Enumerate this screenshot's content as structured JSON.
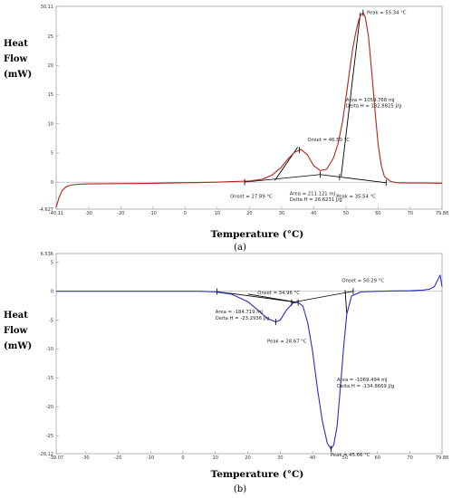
{
  "chart_data": [
    {
      "panel": "(a)",
      "type": "line",
      "xlabel": "Temperature (°C)",
      "ylabel_lines": [
        "Heat",
        "Flow",
        "(mW)"
      ],
      "xlim": [
        -40.11,
        79.88
      ],
      "ylim": [
        -4.627,
        30.11
      ],
      "x_ticks": [
        -40.11,
        -30,
        -20,
        -10,
        0,
        10,
        20,
        30,
        40,
        50,
        60,
        70,
        79.88
      ],
      "x_tick_labels": [
        "-40.11",
        "-30",
        "-20",
        "-10",
        "0",
        "10",
        "20",
        "30",
        "40",
        "50",
        "60",
        "70",
        "79.88"
      ],
      "y_ticks": [
        -4.627,
        0,
        5,
        10,
        15,
        20,
        25,
        30.11
      ],
      "y_tick_labels": [
        "-4.627",
        "0",
        "5",
        "10",
        "15",
        "20",
        "25",
        "30.11"
      ],
      "series": [
        {
          "color": "#b5231c",
          "x": [
            -40.11,
            -39.2,
            -38.2,
            -37,
            -35.5,
            -33,
            -30,
            -20,
            -10,
            0,
            10,
            20,
            24,
            27,
            30,
            32,
            34,
            36,
            38,
            40,
            42,
            44,
            46,
            47.5,
            49,
            50.5,
            52,
            53,
            54,
            54.6,
            55.34,
            56,
            57,
            58,
            59,
            60,
            61,
            62,
            64,
            66,
            70,
            75,
            79.88
          ],
          "y": [
            -4.3,
            -2.6,
            -1.4,
            -0.8,
            -0.5,
            -0.35,
            -0.3,
            -0.25,
            -0.2,
            -0.1,
            0.0,
            0.2,
            0.5,
            1.2,
            2.6,
            4.0,
            5.1,
            5.6,
            4.7,
            2.8,
            2.0,
            2.2,
            4.0,
            6.5,
            10.5,
            16.5,
            22.5,
            25.5,
            27.8,
            28.6,
            29.0,
            28.3,
            25.0,
            19.0,
            12.5,
            6.5,
            2.8,
            0.9,
            0.1,
            -0.1,
            -0.15,
            -0.15,
            -0.2
          ]
        }
      ],
      "baselines": [
        {
          "x": [
            18.5,
            42
          ],
          "y": [
            0.0,
            1.3
          ]
        },
        {
          "x": [
            42,
            62.5
          ],
          "y": [
            1.3,
            -0.1
          ]
        }
      ],
      "markers": [
        {
          "x": 18.5,
          "y": 0.0
        },
        {
          "x": 42,
          "y": 1.3
        },
        {
          "x": 48,
          "y": 0.9
        },
        {
          "x": 62.5,
          "y": -0.1
        },
        {
          "x": 35.54,
          "y": 5.5
        },
        {
          "x": 55.34,
          "y": 29.0
        }
      ],
      "onset_lines": [
        {
          "x": [
            27.89,
            35.0
          ],
          "y": [
            0.3,
            6.0
          ]
        },
        {
          "x": [
            48.5,
            54.5
          ],
          "y": [
            1.0,
            29.0
          ]
        }
      ],
      "annotations": [
        {
          "text": "Peak = 55.34 °C",
          "x": 56.5,
          "y": 28.8
        },
        {
          "text": "Area = 1059.768 mJ",
          "x": 50.0,
          "y": 13.8
        },
        {
          "text": "Delta H = 132.8825 J/g",
          "x": 50.0,
          "y": 12.8
        },
        {
          "text": "Onset = 46.50 °C",
          "x": 38.0,
          "y": 7.0
        },
        {
          "text": "Onset = 27.89 °C",
          "x": 14.0,
          "y": -2.7
        },
        {
          "text": "Area = 211.121 mJ",
          "x": 32.5,
          "y": -2.2
        },
        {
          "text": "Delta H = 26.6231 J/g",
          "x": 32.5,
          "y": -3.2
        },
        {
          "text": "Peak = 35.54 °C",
          "x": 47.0,
          "y": -2.7
        }
      ]
    },
    {
      "panel": "(b)",
      "type": "line",
      "xlabel": "Temperature (°C)",
      "ylabel_lines": [
        "Heat",
        "Flow",
        "(mW)"
      ],
      "xlim": [
        -39.07,
        79.88
      ],
      "ylim": [
        -28.12,
        6.536
      ],
      "x_ticks": [
        -39.07,
        -30,
        -20,
        -10,
        0,
        10,
        20,
        30,
        40,
        50,
        60,
        70,
        79.88
      ],
      "x_tick_labels": [
        "-39.07",
        "-30",
        "-20",
        "-10",
        "0",
        "10",
        "20",
        "30",
        "40",
        "50",
        "60",
        "70",
        "79.88"
      ],
      "y_ticks": [
        -28.12,
        -25,
        -20,
        -15,
        -10,
        -5,
        0,
        5,
        6.536
      ],
      "y_tick_labels": [
        "-28.12",
        "-25",
        "-20",
        "-15",
        "-10",
        "-5",
        "0",
        "5",
        "6.536"
      ],
      "series": [
        {
          "color": "#2a2ec4",
          "x": [
            -39.07,
            -30,
            -20,
            -10,
            0,
            5,
            10,
            15,
            20,
            23,
            26,
            28.67,
            30,
            32,
            34,
            35.5,
            37,
            38.5,
            40,
            41.5,
            43,
            44.5,
            45.66,
            46.5,
            47.5,
            48.5,
            49.5,
            50.5,
            52,
            55,
            60,
            65,
            70,
            74,
            76,
            77.5,
            78.6,
            79.3,
            79.88
          ],
          "y": [
            0.0,
            0.0,
            0.0,
            0.0,
            0.0,
            0.0,
            -0.1,
            -0.5,
            -1.8,
            -3.2,
            -4.7,
            -5.3,
            -5.0,
            -3.2,
            -2.0,
            -1.9,
            -2.6,
            -5.5,
            -10.5,
            -17.0,
            -22.5,
            -26.3,
            -27.3,
            -26.6,
            -23.5,
            -17.0,
            -10.0,
            -4.0,
            -0.8,
            -0.1,
            0.0,
            0.05,
            0.1,
            0.2,
            0.35,
            0.8,
            2.0,
            2.8,
            0.8
          ]
        }
      ],
      "baselines": [
        {
          "x": [
            10.5,
            35.5
          ],
          "y": [
            -0.05,
            -1.95
          ]
        },
        {
          "x": [
            33.5,
            52.5
          ],
          "y": [
            -1.95,
            0.0
          ]
        }
      ],
      "markers": [
        {
          "x": 10.5,
          "y": -0.05
        },
        {
          "x": 28.67,
          "y": -5.3
        },
        {
          "x": 33.5,
          "y": -1.95
        },
        {
          "x": 35.5,
          "y": -1.95
        },
        {
          "x": 52.5,
          "y": 0.0
        },
        {
          "x": 45.66,
          "y": -27.3
        }
      ],
      "onset_lines": [
        {
          "x": [
            20.0,
            34.0
          ],
          "y": [
            -0.5,
            -1.8
          ]
        },
        {
          "x": [
            50.0,
            50.5
          ],
          "y": [
            0.2,
            -3.8
          ]
        }
      ],
      "annotations": [
        {
          "text": "Onset = 50.29 °C",
          "x": 49.0,
          "y": 1.6
        },
        {
          "text": "Onset = 34.96 °C",
          "x": 23.0,
          "y": -0.5
        },
        {
          "text": "Area = -184.719 mJ",
          "x": 10.0,
          "y": -3.8
        },
        {
          "text": "Delta H = -23.2936 J/g",
          "x": 10.0,
          "y": -4.9
        },
        {
          "text": "Peak = 28.67 °C",
          "x": 26.0,
          "y": -8.9
        },
        {
          "text": "Area = -1069.494 mJ",
          "x": 47.5,
          "y": -15.6
        },
        {
          "text": "Delta H = -134.8669 J/g",
          "x": 47.5,
          "y": -16.7
        },
        {
          "text": "Peak = 45.66 °C",
          "x": 45.5,
          "y": -28.6
        }
      ]
    }
  ]
}
